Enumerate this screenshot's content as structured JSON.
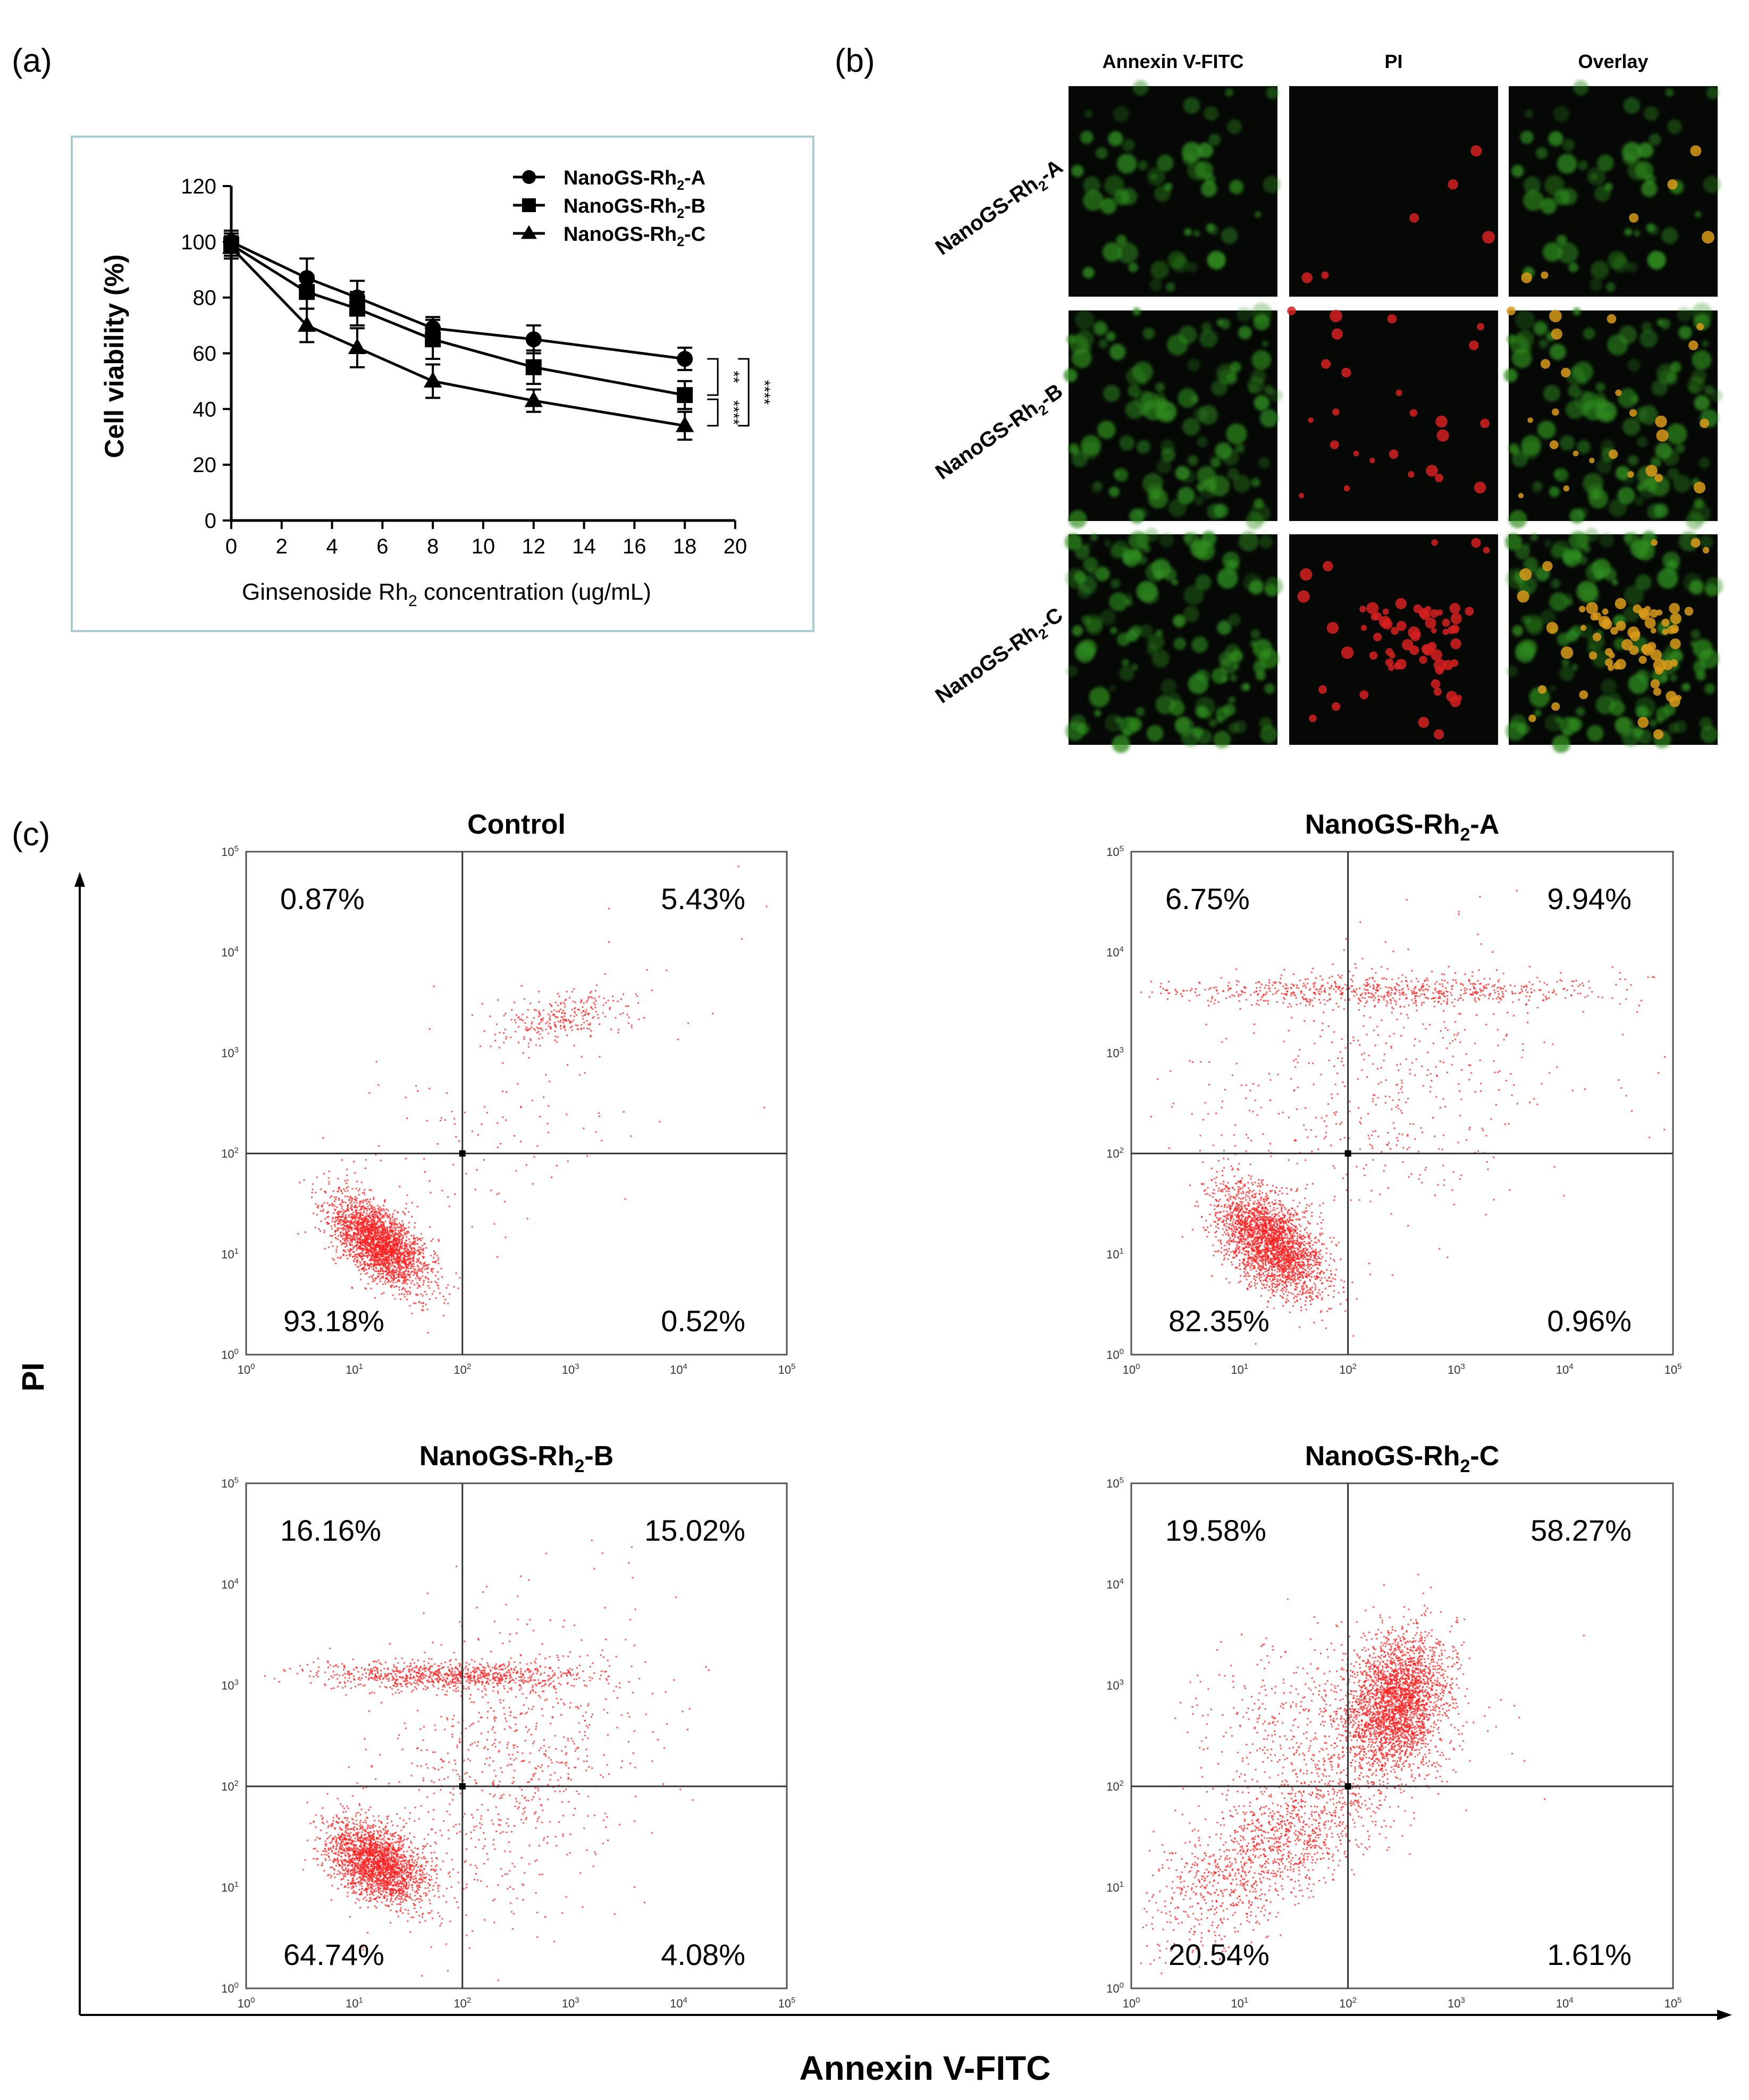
{
  "panel_labels": {
    "a": "(a)",
    "b": "(b)",
    "c": "(c)"
  },
  "chart_data": [
    {
      "panel": "(a)",
      "type": "line",
      "xlabel_main": "Ginsenoside Rh",
      "xlabel_sub": "2",
      "xlabel_tail": " concentration (ug/mL)",
      "ylabel": "Cell viability (%)",
      "xlim": [
        0,
        20
      ],
      "ylim": [
        0,
        120
      ],
      "xticks": [
        "0",
        "2",
        "4",
        "6",
        "8",
        "10",
        "12",
        "14",
        "16",
        "18",
        "20"
      ],
      "yticks": [
        "0",
        "20",
        "40",
        "60",
        "80",
        "100",
        "120"
      ],
      "x": [
        0,
        3,
        5,
        8,
        12,
        18
      ],
      "series": [
        {
          "name": "NanoGS-Rh",
          "sub": "2",
          "suffix": "-A",
          "marker": "circle",
          "values": [
            100,
            87,
            80,
            69,
            65,
            58
          ],
          "errors": [
            4,
            7,
            6,
            4,
            5,
            4
          ]
        },
        {
          "name": "NanoGS-Rh",
          "sub": "2",
          "suffix": "-B",
          "marker": "square",
          "values": [
            99,
            82,
            76,
            65,
            55,
            45
          ],
          "errors": [
            4,
            6,
            6,
            7,
            6,
            5
          ]
        },
        {
          "name": "NanoGS-Rh",
          "sub": "2",
          "suffix": "-C",
          "marker": "triangle",
          "values": [
            98,
            70,
            62,
            50,
            43,
            34
          ],
          "errors": [
            4,
            6,
            7,
            6,
            4,
            5
          ]
        }
      ],
      "significance": [
        "**",
        "****",
        "****"
      ],
      "legend_position": "top-right"
    },
    {
      "panel": "(c)",
      "type": "scatter",
      "ylabel": "PI",
      "xlabel": "Annexin V-FITC",
      "axis_ticks": [
        "0",
        "1",
        "2",
        "3",
        "4",
        "5"
      ],
      "tick_base": "10",
      "xlim_log10": [
        0,
        5
      ],
      "ylim_log10": [
        0,
        5
      ],
      "gate_log10": [
        2,
        2
      ],
      "plots": [
        {
          "title": "Control",
          "title_sub": "",
          "title_tail": "",
          "quadrants": {
            "upper_left": "0.87%",
            "upper_right": "5.43%",
            "lower_left": "93.18%",
            "lower_right": "0.52%"
          }
        },
        {
          "title": "NanoGS-Rh",
          "title_sub": "2",
          "title_tail": "-A",
          "quadrants": {
            "upper_left": "6.75%",
            "upper_right": "9.94%",
            "lower_left": "82.35%",
            "lower_right": "0.96%"
          }
        },
        {
          "title": "NanoGS-Rh",
          "title_sub": "2",
          "title_tail": "-B",
          "quadrants": {
            "upper_left": "16.16%",
            "upper_right": "15.02%",
            "lower_left": "64.74%",
            "lower_right": "4.08%"
          }
        },
        {
          "title": "NanoGS-Rh",
          "title_sub": "2",
          "title_tail": "-C",
          "quadrants": {
            "upper_left": "19.58%",
            "upper_right": "58.27%",
            "lower_left": "20.54%",
            "lower_right": "1.61%"
          }
        }
      ]
    }
  ],
  "microscopy": {
    "panel": "(b)",
    "columns": [
      "Annexin V-FITC",
      "PI",
      "Overlay"
    ],
    "rows": [
      {
        "name": "NanoGS-Rh",
        "sub": "2",
        "suffix": "-A"
      },
      {
        "name": "NanoGS-Rh",
        "sub": "2",
        "suffix": "-B"
      },
      {
        "name": "NanoGS-Rh",
        "sub": "2",
        "suffix": "-C"
      }
    ],
    "colors": {
      "green": "#2f8f1f",
      "red": "#d62020",
      "orange": "#d99a1a",
      "background": "#050805"
    }
  },
  "colors": {
    "scatter_dot": "#ff2020",
    "line": "#000000",
    "frame_border": "#a9cdd2"
  }
}
